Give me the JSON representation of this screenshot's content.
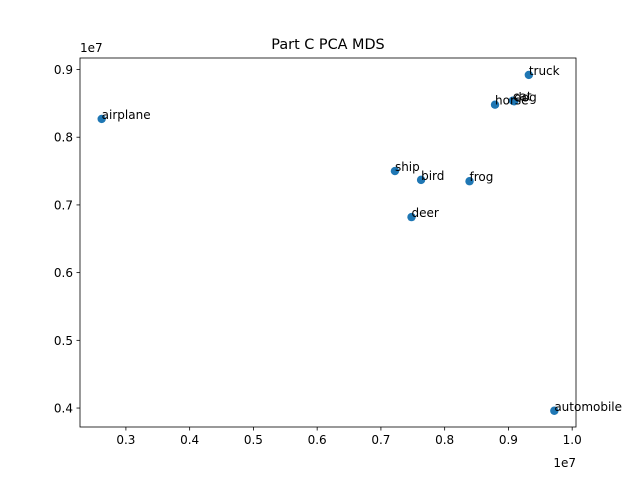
{
  "chart_data": {
    "type": "scatter",
    "title": "Part C PCA MDS",
    "xlabel": "",
    "ylabel": "",
    "x_offset_label": "1e7",
    "y_offset_label": "1e7",
    "xlim": [
      2.28,
      10.06
    ],
    "ylim": [
      3.72,
      9.17
    ],
    "x_ticks": [
      0.3,
      0.4,
      0.5,
      0.6,
      0.7,
      0.8,
      0.9,
      1.0
    ],
    "x_tick_labels": [
      "0.3",
      "0.4",
      "0.5",
      "0.6",
      "0.7",
      "0.8",
      "0.9",
      "1.0"
    ],
    "y_ticks": [
      4.0,
      5.0,
      6.0,
      7.0,
      8.0,
      9.0
    ],
    "y_tick_labels": [
      "0.4",
      "0.5",
      "0.6",
      "0.7",
      "0.8",
      "0.9"
    ],
    "x_tick_scale": 10,
    "y_tick_scale": 10,
    "marker_color": "#1f77b4",
    "grid": false,
    "legend": "none",
    "points": [
      {
        "label": "airplane",
        "x": 2.62,
        "y": 8.27
      },
      {
        "label": "automobile",
        "x": 9.72,
        "y": 3.96
      },
      {
        "label": "bird",
        "x": 7.63,
        "y": 7.37
      },
      {
        "label": "cat",
        "x": 9.07,
        "y": 8.54
      },
      {
        "label": "deer",
        "x": 7.48,
        "y": 6.82
      },
      {
        "label": "dog",
        "x": 9.09,
        "y": 8.53
      },
      {
        "label": "frog",
        "x": 8.39,
        "y": 7.35
      },
      {
        "label": "horse",
        "x": 8.79,
        "y": 8.48
      },
      {
        "label": "ship",
        "x": 7.22,
        "y": 7.5
      },
      {
        "label": "truck",
        "x": 9.32,
        "y": 8.92
      }
    ]
  }
}
